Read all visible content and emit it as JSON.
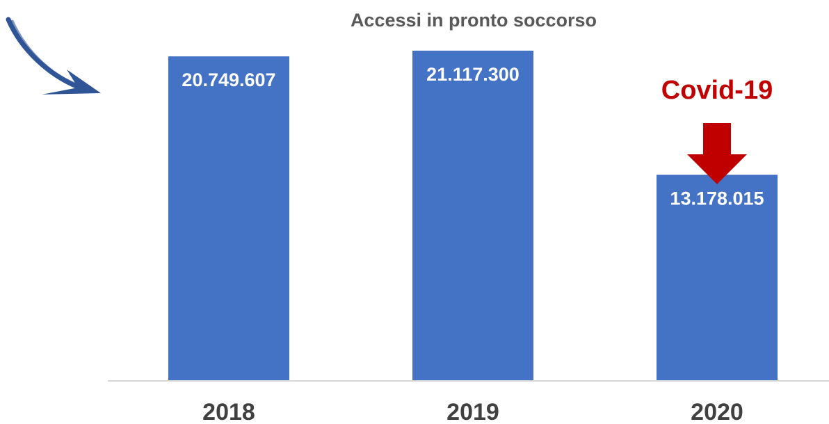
{
  "chart_data": {
    "type": "bar",
    "title": "Accessi in pronto soccorso",
    "xlabel": "",
    "ylabel": "",
    "categories": [
      "2018",
      "2019",
      "2020"
    ],
    "values": [
      20749607,
      21117300,
      13178015
    ],
    "value_labels": [
      "20.749.607",
      "21.117.300",
      "13.178.015"
    ],
    "ylim": [
      0,
      24000000
    ],
    "grid": false,
    "legend": "none",
    "annotation": {
      "text": "Covid-19",
      "category": "2020",
      "icon": "arrow-down-icon"
    },
    "decoration": {
      "icon": "curved-arrow-icon"
    },
    "colors": {
      "bar": "#4472C4",
      "value_label": "#FFFFFF",
      "title": "#595959",
      "tick_label": "#404040",
      "axis_line": "#D9D9D9",
      "annotation": "#C00000",
      "curved_arrow": "#2F5597"
    }
  }
}
